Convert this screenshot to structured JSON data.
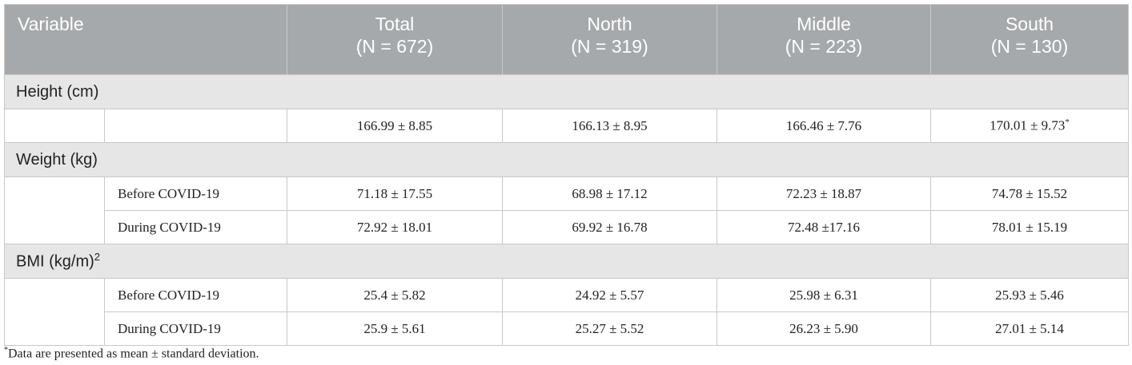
{
  "table": {
    "header": {
      "variable": "Variable",
      "groups": [
        {
          "name": "Total",
          "n": "(N = 672)"
        },
        {
          "name": "North",
          "n": "(N = 319)"
        },
        {
          "name": "Middle",
          "n": "(N = 223)"
        },
        {
          "name": "South",
          "n": "(N = 130)"
        }
      ]
    },
    "sections": [
      {
        "label": "Height (cm)",
        "rows": [
          {
            "values": [
              "166.99 ± 8.85",
              "166.13 ± 8.95",
              "166.46 ± 7.76",
              {
                "text": "170.01 ± 9.73",
                "note": "*"
              }
            ]
          }
        ]
      },
      {
        "label": "Weight (kg)",
        "rows": [
          {
            "label": "Before COVID-19",
            "values": [
              "71.18 ± 17.55",
              "68.98 ± 17.12",
              "72.23 ± 18.87",
              "74.78 ± 15.52"
            ]
          },
          {
            "label": "During COVID-19",
            "values": [
              "72.92 ± 18.01",
              "69.92 ± 16.78",
              "72.48 ±17.16",
              "78.01 ± 15.19"
            ]
          }
        ]
      },
      {
        "label": "BMI (kg/m)",
        "label_sup": "2",
        "rows": [
          {
            "label": "Before COVID-19",
            "values": [
              "25.4 ± 5.82",
              "24.92 ± 5.57",
              "25.98 ± 6.31",
              "25.93 ± 5.46"
            ]
          },
          {
            "label": "During COVID-19",
            "values": [
              "25.9 ± 5.61",
              "25.27 ± 5.52",
              "26.23 ± 5.90",
              "27.01 ± 5.14"
            ]
          }
        ]
      }
    ]
  },
  "footnote": {
    "marker": "*",
    "text": "Data are presented as mean ± standard deviation."
  }
}
